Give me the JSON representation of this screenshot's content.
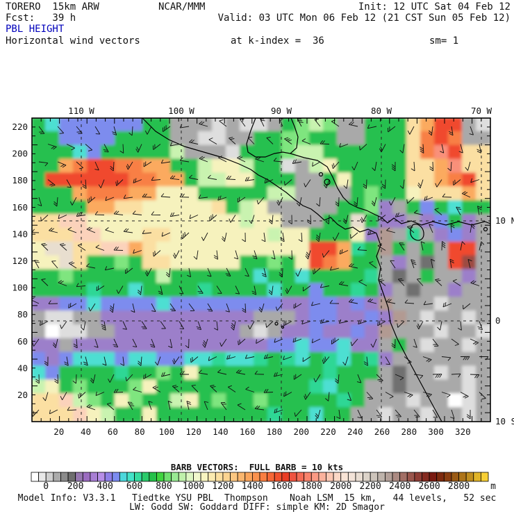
{
  "header": {
    "model_id": "TORERO  15km ARW",
    "center": "NCAR/MMM",
    "init": "Init: 12 UTC Sat 04 Feb 12",
    "fcst": "Fcst:   39 h",
    "valid": "Valid: 03 UTC Mon 06 Feb 12 (21 CST Sun 05 Feb 12)",
    "field_title": "PBL HEIGHT",
    "field_title_color": "#0000bb",
    "subtitle": "Horizontal wind vectors",
    "level": "at k-index =  36",
    "smoothing": "sm= 1"
  },
  "plot": {
    "top_axis_labels": [
      "110 W",
      "100 W",
      "90 W",
      "80 W",
      "70 W"
    ],
    "right_axis_labels": [
      "10 N",
      "0",
      "10 S"
    ],
    "left_axis_labels": [
      "220",
      "200",
      "180",
      "160",
      "140",
      "120",
      "100",
      "80",
      "60",
      "40",
      "20"
    ],
    "bottom_axis_labels": [
      "20",
      "40",
      "60",
      "80",
      "100",
      "120",
      "140",
      "160",
      "180",
      "200",
      "220",
      "240",
      "260",
      "280",
      "300",
      "320"
    ],
    "field_palette": {
      "W": "#ffffff",
      "w": "#dedede",
      "g": "#a9a9a9",
      "d": "#6f6f6f",
      "p": "#9c7fca",
      "P": "#8478e6",
      "b": "#7d8cee",
      "c": "#4ddfd2",
      "t": "#2fd795",
      "G": "#27c04f",
      "l": "#7fe57f",
      "L": "#c9f3b0",
      "y": "#f6f2bd",
      "e": "#fbdfa2",
      "s": "#fbd2bb",
      "n": "#e8decf",
      "o": "#fbaa5e",
      "O": "#f87f45",
      "r": "#f0492f",
      "R": "#f9907a",
      "m": "#b29a92",
      "M": "#9d4b42",
      "K": "#801d12",
      "B": "#97561d",
      "A": "#c08e1e",
      "Y": "#f8cf38"
    },
    "field_rows": [
      "GcbbbbbbGGgggwgwwgGlLlggGGGeorrgw",
      "GGbbbbGGGGggwwggGGllGGggGGGeOrOgg",
      "GGGcbGGGGGLgggwGGGlLLGGGGGGeORree",
      "GGoOrrOOooGGLyyLGGwgLyGGGGGeeoRee",
      "GrrrrrrOOooGLLyyGGGggGyGGGGeeoOre",
      "GGGoOOOooyyyGGGGGLLggggGlGGyeeeoe",
      "GGGGooeeyyyyyeGLygggggGGlpgGbGcGG",
      "eessyyyyyyyyyyyLyygggGGnGppgpbGpg",
      "eeessyyyeeyyyyyyyLyyGGGypmgtgpbpg",
      "ynneessoeyyyyyyyyyyyrrotGmGgGgrrg",
      "yyneGGlGeeyyyyyGGlGyrOoGGgpgdgrMg",
      "GGlGGGGGGLGGGGGGcGGcGGGGtgdgGggpg",
      "GGGGtGGcGGGGtGGGGcGGbGGtGpgdggpgg",
      "ppbbcbbbbcbbbbbbbbppbbpbpmgggwggg",
      "gwwggpppppppppppgggpbbppbpmgwggwg",
      "gWwwggpppppppppgwgppbppbpmgggwggw",
      "ppgppppppppppppppbbcbbcppgGgwggwg",
      "bpbcccbccbbcctcctGtcGtcGtpggggggg",
      "cbGGGGtGGlGyGGGGGGGGGtGGGgdggwgwg",
      "LyGlGGGlyGGGGGGGGGGGtcGGggdggggwg",
      "eesLlGylGGLyGlGGlGGGGGtGgggwggWwg",
      "eeesyLGGyGGGGGGGGtGGcGGggwggwggwg"
    ]
  },
  "barb_legend": "BARB VECTORS:  FULL BARB = 10 kts",
  "colorbar": {
    "unit": "m",
    "min": 0,
    "max": 2800,
    "step": 200,
    "tick_labels": [
      "0",
      "200",
      "400",
      "600",
      "800",
      "1000",
      "1200",
      "1400",
      "1600",
      "1800",
      "2000",
      "2200",
      "2400",
      "2600",
      "2800"
    ],
    "colors": [
      "#ffffff",
      "#e8e8e8",
      "#cfcfcf",
      "#ababab",
      "#8b8b8b",
      "#6e6e6e",
      "#9678b0",
      "#9b6cc0",
      "#a87fd4",
      "#b78fe8",
      "#8f7fe8",
      "#7c8cf0",
      "#4cd7dc",
      "#43e3c8",
      "#35dca0",
      "#2aca6a",
      "#25c14a",
      "#3fd43f",
      "#6fe06f",
      "#98e993",
      "#bff0ab",
      "#ddf6c2",
      "#f1f8cd",
      "#f8f4c0",
      "#fbeab0",
      "#fbdfa0",
      "#fbd491",
      "#fbc681",
      "#fbb66e",
      "#fba55c",
      "#fa924e",
      "#f97e41",
      "#f66736",
      "#f1502c",
      "#ea3d24",
      "#ef5340",
      "#f46b55",
      "#f8836c",
      "#fa9a84",
      "#fbb29c",
      "#fbc7b2",
      "#fbd8c6",
      "#f9e4d6",
      "#f3e3d8",
      "#e9ddd2",
      "#dcd3c9",
      "#cdc4bb",
      "#beb3ab",
      "#b3a099",
      "#ab8a82",
      "#a26f66",
      "#9a564d",
      "#8f3d35",
      "#842a20",
      "#7a1a10",
      "#7e2a0e",
      "#8a3d10",
      "#9a5a14",
      "#ad7418",
      "#c08e1e",
      "#e0b428",
      "#f7cf35"
    ]
  },
  "footer": {
    "line1": "Model Info: V3.3.1   Tiedtke YSU PBL  Thompson    Noah LSM  15 km,   44 levels,   52 sec",
    "line2": "LW: Godd SW: Goddard DIFF: simple KM: 2D Smagor"
  }
}
